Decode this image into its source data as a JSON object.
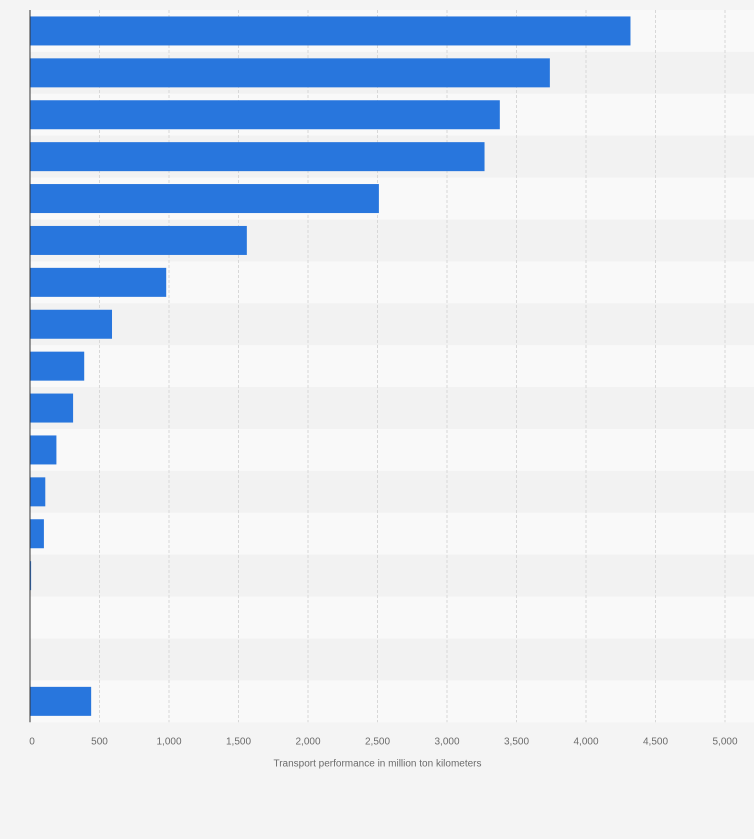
{
  "colors": {
    "page_background": "#f4f4f4",
    "band_light": "#f9f9f9",
    "band_dark": "#f2f2f2",
    "bar": "#2876dd",
    "grid": "#d8d8d8",
    "axis_line": "#333333",
    "text": "#6b6b6b"
  },
  "chart_data": {
    "type": "bar",
    "orientation": "horizontal",
    "title": "",
    "categories": [
      "",
      "",
      "",
      "",
      "",
      "",
      "",
      "",
      "",
      "",
      "",
      "",
      "",
      "",
      "",
      "",
      ""
    ],
    "values": [
      4320,
      3740,
      3380,
      3270,
      2510,
      1560,
      980,
      590,
      390,
      310,
      190,
      110,
      100,
      8,
      0,
      0,
      440
    ],
    "xlabel": "Transport performance in million ton kilometers",
    "ylabel": "",
    "xlim": [
      0,
      5000
    ],
    "xticks": [
      0,
      500,
      1000,
      1500,
      2000,
      2500,
      3000,
      3500,
      4000,
      4500,
      5000
    ],
    "xtick_labels": [
      "0",
      "500",
      "1,000",
      "1,500",
      "2,000",
      "2,500",
      "3,000",
      "3,500",
      "4,000",
      "4,500",
      "5,000"
    ],
    "grid": true,
    "legend": "none"
  }
}
